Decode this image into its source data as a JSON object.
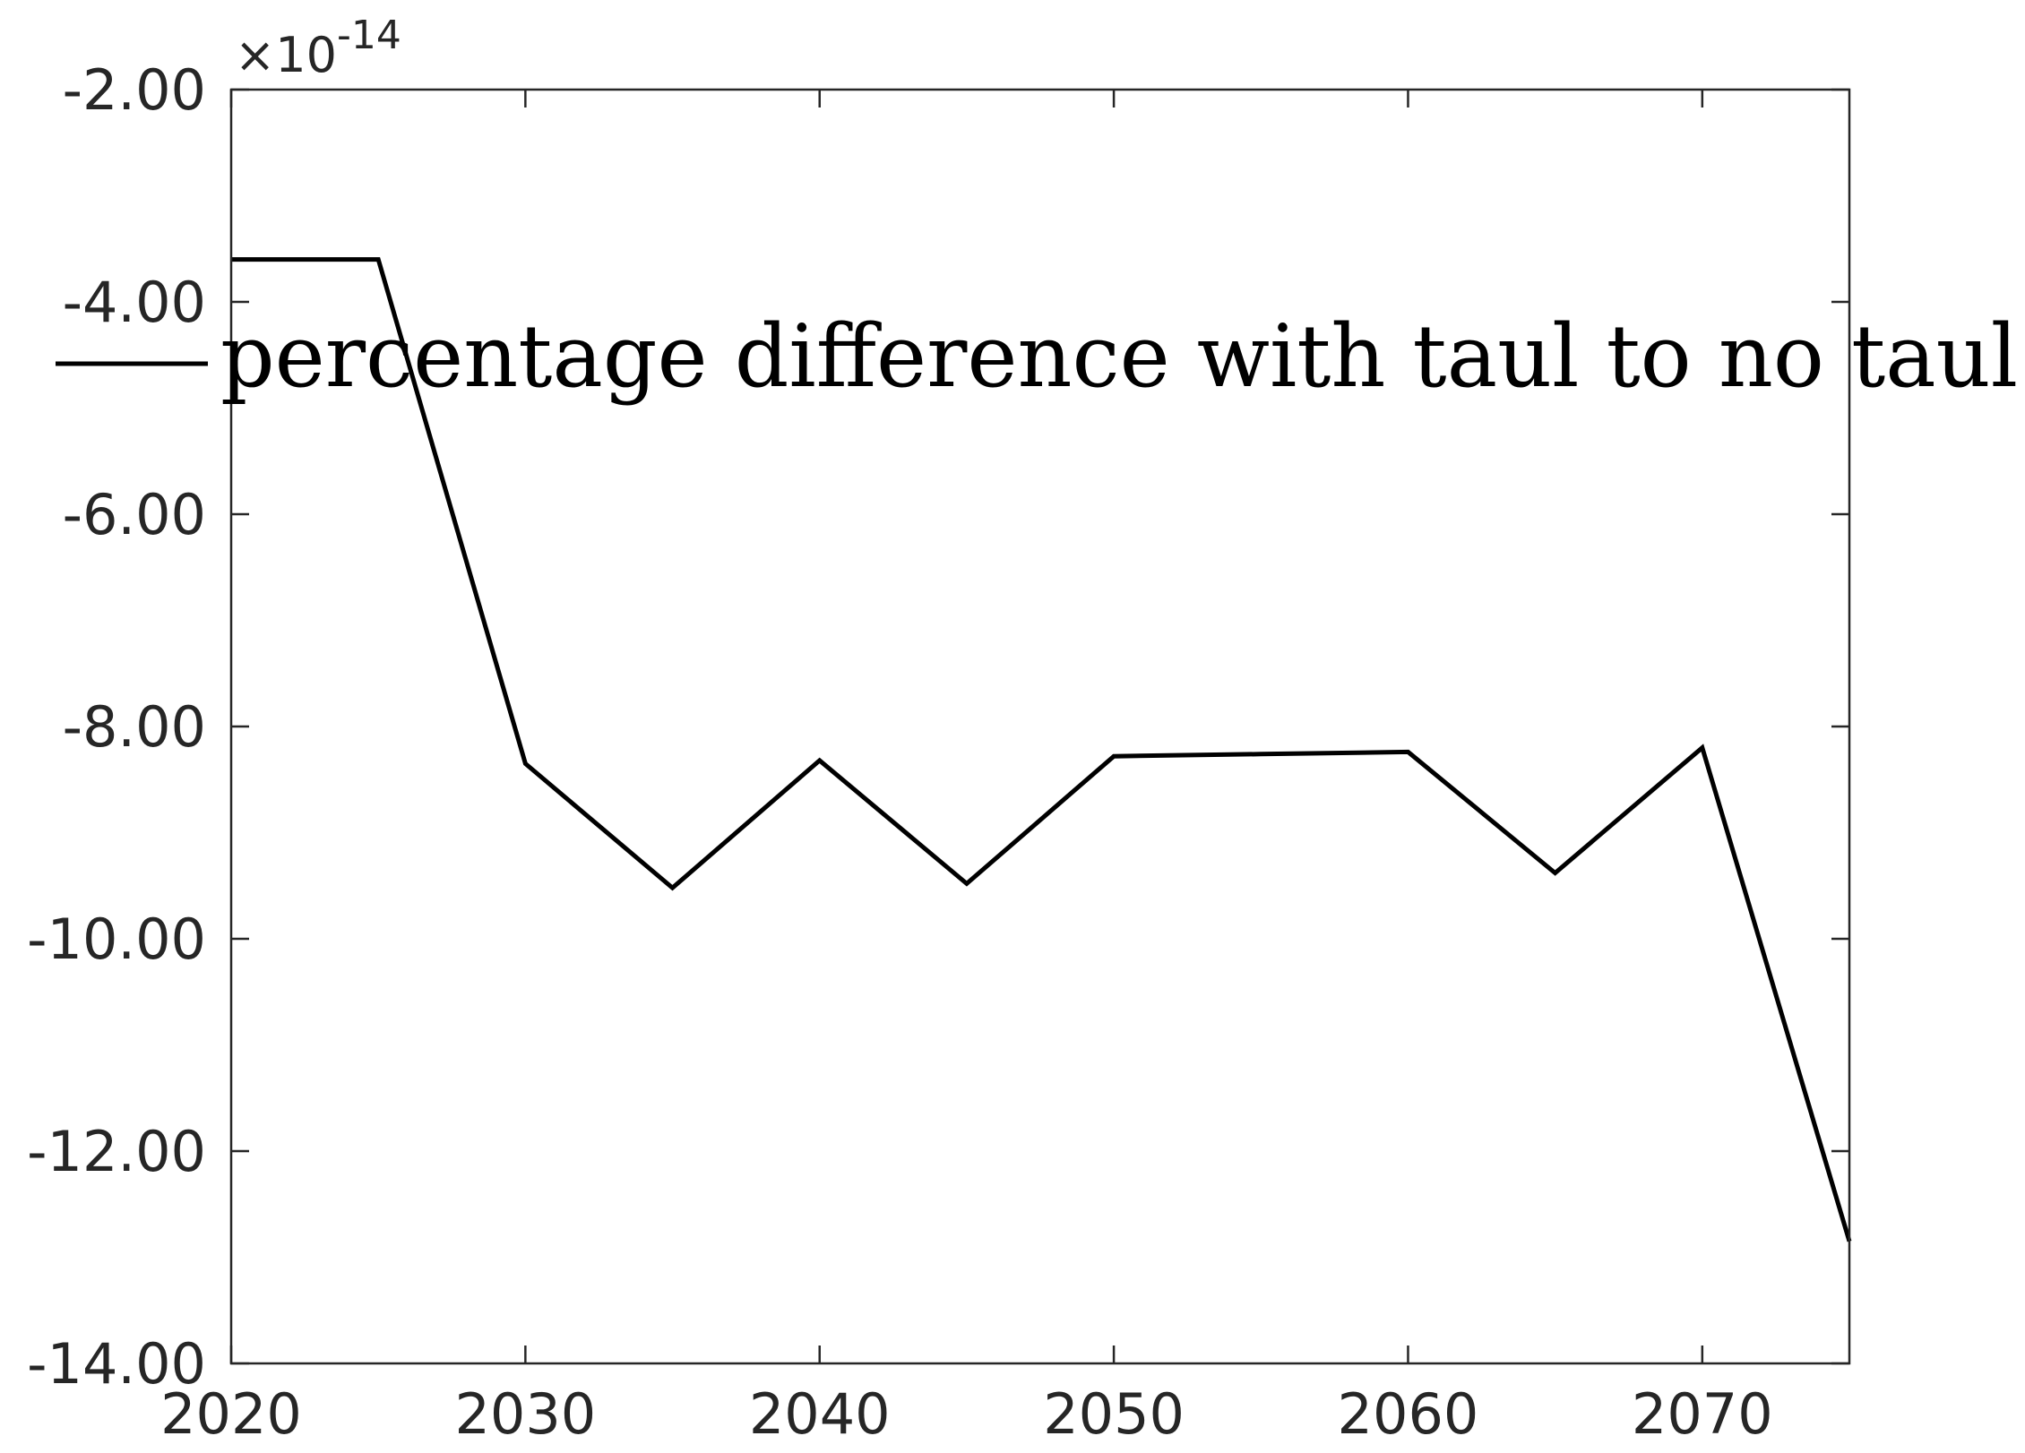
{
  "chart_data": {
    "type": "line",
    "title": "",
    "xlabel": "",
    "ylabel": "",
    "x": [
      2020,
      2025,
      2030,
      2035,
      2040,
      2045,
      2050,
      2055,
      2060,
      2065,
      2070,
      2075
    ],
    "series": [
      {
        "name": "percentage difference with taul to no taul",
        "values": [
          -3.6,
          -3.6,
          -8.35,
          -9.52,
          -8.32,
          -9.48,
          -8.28,
          -8.26,
          -8.24,
          -9.38,
          -8.2,
          -12.85
        ],
        "color": "#000000"
      }
    ],
    "xlim": [
      2020,
      2075
    ],
    "ylim": [
      -14,
      -2
    ],
    "xticks": [
      2020,
      2030,
      2040,
      2050,
      2060,
      2070
    ],
    "xtick_labels": [
      "2020",
      "2030",
      "2040",
      "2050",
      "2060",
      "2070"
    ],
    "yticks": [
      -14,
      -12,
      -10,
      -8,
      -6,
      -4,
      -2
    ],
    "ytick_labels": [
      "-14.00",
      "-12.00",
      "-10.00",
      "-8.00",
      "-6.00",
      "-4.00",
      "-2.00"
    ],
    "y_exponent_label": "×10",
    "y_exponent_power": "-14",
    "grid": false,
    "legend_position": "top-right"
  }
}
